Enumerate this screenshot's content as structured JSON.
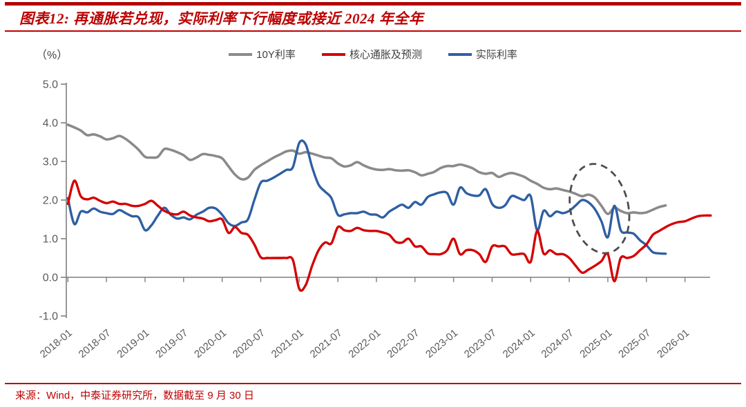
{
  "header": {
    "title": "图表12: 再通胀若兑现，实际利率下行幅度或接近 2024 年全年"
  },
  "chart": {
    "unit_label": "（%）"
  },
  "legend": [
    {
      "label": "10Y利率",
      "color": "#8a8a8a"
    },
    {
      "label": "核心通胀及预测",
      "color": "#d40000"
    },
    {
      "label": "实际利率",
      "color": "#2e5fa3"
    }
  ],
  "footer": {
    "source": "来源：Wind，中泰证券研究所，数据截至 9 月 30 日"
  },
  "chart_data": {
    "type": "line",
    "x_frequency": "monthly",
    "x_start": "2018-01",
    "x_tick_labels": [
      "2018-01",
      "2018-07",
      "2019-01",
      "2019-07",
      "2020-01",
      "2020-07",
      "2021-01",
      "2021-07",
      "2022-01",
      "2022-07",
      "2023-01",
      "2023-07",
      "2024-01",
      "2024-07",
      "2025-01",
      "2025-07",
      "2026-01"
    ],
    "x_tick_month_indices": [
      0,
      6,
      12,
      18,
      24,
      30,
      36,
      42,
      48,
      54,
      60,
      66,
      72,
      78,
      84,
      90,
      96
    ],
    "ylim": [
      -1.0,
      5.0
    ],
    "y_ticks": [
      5.0,
      4.0,
      3.0,
      2.0,
      1.0,
      0.0,
      -1.0
    ],
    "y_tick_labels": [
      "5.0",
      "4.0",
      "3.0",
      "2.0",
      "1.0",
      "0.0",
      "-1.0"
    ],
    "grid": false,
    "legend_position": "top",
    "series": [
      {
        "name": "10Y利率",
        "color": "#8a8a8a",
        "stroke_width": 3.6,
        "start_month": "2018-01",
        "start_month_index": 0,
        "end_month": "2025-10",
        "values": [
          3.95,
          3.88,
          3.8,
          3.68,
          3.7,
          3.65,
          3.57,
          3.6,
          3.66,
          3.58,
          3.45,
          3.3,
          3.12,
          3.1,
          3.12,
          3.32,
          3.3,
          3.24,
          3.16,
          3.04,
          3.1,
          3.19,
          3.17,
          3.14,
          3.08,
          2.87,
          2.66,
          2.54,
          2.58,
          2.78,
          2.9,
          3.0,
          3.1,
          3.18,
          3.26,
          3.28,
          3.2,
          3.24,
          3.2,
          3.15,
          3.1,
          3.08,
          2.95,
          2.87,
          2.9,
          2.98,
          2.9,
          2.83,
          2.79,
          2.78,
          2.8,
          2.77,
          2.76,
          2.77,
          2.72,
          2.64,
          2.68,
          2.73,
          2.83,
          2.88,
          2.88,
          2.92,
          2.88,
          2.82,
          2.72,
          2.68,
          2.7,
          2.6,
          2.66,
          2.7,
          2.66,
          2.6,
          2.5,
          2.42,
          2.32,
          2.28,
          2.3,
          2.26,
          2.22,
          2.16,
          2.1,
          2.14,
          2.06,
          1.85,
          1.64,
          1.8,
          1.72,
          1.66,
          1.68,
          1.66,
          1.68,
          1.75,
          1.82,
          1.86
        ]
      },
      {
        "name": "实际利率",
        "color": "#2e5fa3",
        "stroke_width": 3.4,
        "start_month": "2018-01",
        "start_month_index": 0,
        "end_month": "2025-10",
        "values": [
          2.05,
          1.38,
          1.7,
          1.68,
          1.78,
          1.7,
          1.66,
          1.64,
          1.74,
          1.66,
          1.58,
          1.55,
          1.22,
          1.35,
          1.6,
          1.8,
          1.62,
          1.52,
          1.55,
          1.5,
          1.62,
          1.7,
          1.8,
          1.78,
          1.62,
          1.4,
          1.33,
          1.42,
          1.5,
          2.0,
          2.45,
          2.5,
          2.58,
          2.68,
          2.78,
          2.85,
          3.48,
          3.44,
          2.85,
          2.4,
          2.22,
          2.05,
          1.62,
          1.63,
          1.66,
          1.66,
          1.7,
          1.63,
          1.62,
          1.55,
          1.7,
          1.8,
          1.88,
          1.8,
          1.95,
          1.88,
          2.08,
          2.15,
          2.2,
          2.18,
          1.88,
          2.32,
          2.18,
          2.12,
          2.12,
          2.28,
          1.9,
          1.8,
          1.86,
          2.1,
          2.06,
          2.0,
          2.1,
          1.22,
          1.72,
          1.58,
          1.7,
          1.66,
          1.72,
          1.86,
          2.0,
          1.94,
          1.76,
          1.45,
          1.04,
          1.85,
          1.22,
          1.16,
          1.13,
          0.96,
          0.83,
          0.65,
          0.62,
          0.61
        ]
      },
      {
        "name": "核心通胀及预测",
        "color": "#d40000",
        "stroke_width": 3.4,
        "start_month": "2018-01",
        "start_month_index": 0,
        "end_month": "2026-05",
        "values": [
          1.9,
          2.5,
          2.1,
          2.02,
          2.06,
          1.98,
          1.92,
          1.96,
          1.9,
          1.9,
          1.85,
          1.85,
          1.9,
          1.98,
          1.85,
          1.72,
          1.65,
          1.63,
          1.7,
          1.6,
          1.55,
          1.52,
          1.45,
          1.48,
          1.5,
          1.15,
          1.3,
          1.15,
          1.1,
          0.85,
          0.52,
          0.5,
          0.5,
          0.5,
          0.5,
          0.45,
          -0.3,
          -0.2,
          0.3,
          0.7,
          0.9,
          0.88,
          1.3,
          1.22,
          1.2,
          1.28,
          1.22,
          1.2,
          1.2,
          1.16,
          1.1,
          0.92,
          0.9,
          1.0,
          0.8,
          0.8,
          0.62,
          0.6,
          0.6,
          0.7,
          1.0,
          0.6,
          0.7,
          0.7,
          0.6,
          0.4,
          0.8,
          0.8,
          0.8,
          0.6,
          0.6,
          0.6,
          0.4,
          1.2,
          0.62,
          0.7,
          0.6,
          0.6,
          0.5,
          0.3,
          0.12,
          0.2,
          0.3,
          0.42,
          0.6,
          -0.1,
          0.5,
          0.5,
          0.55,
          0.7,
          0.85,
          1.1,
          1.2,
          1.3,
          1.38,
          1.43,
          1.45,
          1.52,
          1.58,
          1.6,
          1.6
        ]
      }
    ],
    "annotation_ellipse": {
      "center_month": "2024-12",
      "center_month_index": 82.7,
      "center_value": 1.78,
      "rx_months": 4.5,
      "ry_value": 1.17,
      "rotation_deg": -12,
      "color": "#4d4d4d",
      "style": "dashed"
    }
  }
}
